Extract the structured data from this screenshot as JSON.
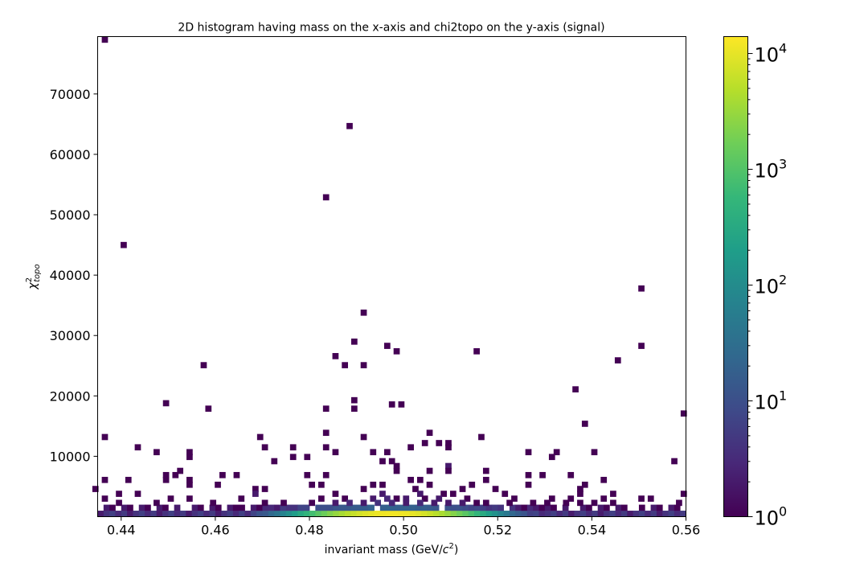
{
  "chart_data": {
    "type": "heatmap",
    "title": "2D histogram having mass on the x-axis and chi2topo on the y-axis (signal)",
    "xlabel": "invariant mass (GeV/c²)",
    "xlabel_prefix": "invariant mass (GeV/",
    "xlabel_c": "c",
    "xlabel_sup": "2",
    "xlabel_suffix": ")",
    "ylabel_main": "χ",
    "ylabel_sup": "2",
    "ylabel_sub": "topo",
    "xlim": [
      0.435,
      0.56
    ],
    "ylim": [
      0,
      79500
    ],
    "xticks": [
      0.44,
      0.46,
      0.48,
      0.5,
      0.52,
      0.54,
      0.56
    ],
    "xtick_labels": [
      "0.44",
      "0.46",
      "0.48",
      "0.50",
      "0.52",
      "0.54",
      "0.56"
    ],
    "yticks": [
      10000,
      20000,
      30000,
      40000,
      50000,
      60000,
      70000
    ],
    "ytick_labels": [
      "10000",
      "20000",
      "30000",
      "40000",
      "50000",
      "60000",
      "70000"
    ],
    "colorbar": {
      "scale": "log",
      "colormap": "viridis",
      "range": [
        1,
        14000
      ],
      "ticks": [
        {
          "base": "10",
          "exp": "0",
          "value": 1
        },
        {
          "base": "10",
          "exp": "1",
          "value": 10
        },
        {
          "base": "10",
          "exp": "2",
          "value": 100
        },
        {
          "base": "10",
          "exp": "3",
          "value": 1000
        },
        {
          "base": "10",
          "exp": "4",
          "value": 10000
        }
      ]
    },
    "bins": {
      "x_bins": 100,
      "y_bins": 80,
      "x_edges": [
        0.435,
        0.56
      ],
      "y_edges": [
        0,
        79500
      ]
    },
    "cells": [
      [
        0.4365,
        79000,
        1
      ],
      [
        0.4405,
        45000,
        1
      ],
      [
        0.4885,
        64700,
        1
      ],
      [
        0.4835,
        52900,
        1
      ],
      [
        0.5505,
        37800,
        1
      ],
      [
        0.4915,
        33800,
        1
      ],
      [
        0.4895,
        29000,
        1
      ],
      [
        0.4965,
        28300,
        1
      ],
      [
        0.4985,
        27400,
        1
      ],
      [
        0.5155,
        27400,
        1
      ],
      [
        0.5505,
        28300,
        1
      ],
      [
        0.4855,
        26600,
        1
      ],
      [
        0.4875,
        25100,
        1
      ],
      [
        0.4915,
        25100,
        1
      ],
      [
        0.4575,
        25100,
        1
      ],
      [
        0.5455,
        25900,
        1
      ],
      [
        0.5365,
        21100,
        1
      ],
      [
        0.4495,
        18800,
        1
      ],
      [
        0.4585,
        17900,
        1
      ],
      [
        0.4835,
        17900,
        1
      ],
      [
        0.4895,
        19300,
        1
      ],
      [
        0.4895,
        17900,
        1
      ],
      [
        0.4975,
        18600,
        1
      ],
      [
        0.4995,
        18600,
        1
      ],
      [
        0.5595,
        17100,
        1
      ],
      [
        0.5385,
        15400,
        1
      ],
      [
        0.4365,
        13200,
        1
      ],
      [
        0.4695,
        13200,
        1
      ],
      [
        0.4835,
        13900,
        1
      ],
      [
        0.4915,
        13200,
        1
      ],
      [
        0.5055,
        13900,
        1
      ],
      [
        0.5165,
        13200,
        1
      ],
      [
        0.4435,
        11500,
        1
      ],
      [
        0.4705,
        11500,
        1
      ],
      [
        0.4765,
        11500,
        1
      ],
      [
        0.4835,
        11500,
        1
      ],
      [
        0.5015,
        11500,
        1
      ],
      [
        0.5045,
        12200,
        1
      ],
      [
        0.5075,
        12200,
        1
      ],
      [
        0.5095,
        12200,
        1
      ],
      [
        0.5095,
        11500,
        1
      ],
      [
        0.4475,
        10700,
        1
      ],
      [
        0.4545,
        10700,
        1
      ],
      [
        0.4545,
        9900,
        1
      ],
      [
        0.4855,
        10700,
        1
      ],
      [
        0.4935,
        10700,
        1
      ],
      [
        0.4965,
        10700,
        1
      ],
      [
        0.5265,
        10700,
        1
      ],
      [
        0.5325,
        10700,
        1
      ],
      [
        0.5405,
        10700,
        1
      ],
      [
        0.4725,
        9200,
        1
      ],
      [
        0.4765,
        9900,
        1
      ],
      [
        0.4795,
        9900,
        1
      ],
      [
        0.4955,
        9200,
        1
      ],
      [
        0.4975,
        9200,
        1
      ],
      [
        0.5315,
        9900,
        1
      ],
      [
        0.5575,
        9200,
        1
      ],
      [
        0.4515,
        6900,
        1
      ],
      [
        0.4495,
        6900,
        1
      ],
      [
        0.4615,
        6900,
        1
      ],
      [
        0.4645,
        6900,
        1
      ],
      [
        0.4795,
        6900,
        1
      ],
      [
        0.4835,
        6900,
        1
      ],
      [
        0.4985,
        7600,
        1
      ],
      [
        0.4985,
        8400,
        1
      ],
      [
        0.5095,
        8400,
        2
      ],
      [
        0.5055,
        7600,
        1
      ],
      [
        0.5095,
        7600,
        1
      ],
      [
        0.5175,
        7600,
        1
      ],
      [
        0.5265,
        6900,
        1
      ],
      [
        0.5295,
        6900,
        1
      ],
      [
        0.5355,
        6900,
        1
      ],
      [
        0.4525,
        7600,
        1
      ],
      [
        0.4415,
        6100,
        1
      ],
      [
        0.4365,
        6100,
        1
      ],
      [
        0.4495,
        6100,
        1
      ],
      [
        0.4545,
        6100,
        1
      ],
      [
        0.4545,
        5300,
        1
      ],
      [
        0.4605,
        5300,
        1
      ],
      [
        0.4805,
        5300,
        1
      ],
      [
        0.4825,
        5300,
        1
      ],
      [
        0.4935,
        5300,
        1
      ],
      [
        0.4955,
        5300,
        1
      ],
      [
        0.5015,
        6100,
        1
      ],
      [
        0.5035,
        6100,
        1
      ],
      [
        0.5055,
        5300,
        1
      ],
      [
        0.5145,
        5300,
        1
      ],
      [
        0.5175,
        6100,
        1
      ],
      [
        0.5195,
        4600,
        1
      ],
      [
        0.5265,
        5300,
        1
      ],
      [
        0.5385,
        5300,
        1
      ],
      [
        0.5425,
        6100,
        1
      ],
      [
        0.4345,
        4600,
        1
      ],
      [
        0.4395,
        3800,
        1
      ],
      [
        0.4435,
        3800,
        1
      ],
      [
        0.4685,
        4600,
        1
      ],
      [
        0.4705,
        4600,
        1
      ],
      [
        0.4855,
        3800,
        1
      ],
      [
        0.4915,
        4600,
        1
      ],
      [
        0.5125,
        4600,
        1
      ],
      [
        0.5375,
        4600,
        1
      ],
      [
        0.5445,
        3800,
        1
      ],
      [
        0.4685,
        3800,
        2
      ],
      [
        0.4955,
        3800,
        2
      ],
      [
        0.5025,
        4600,
        1
      ],
      [
        0.5035,
        3800,
        2
      ],
      [
        0.5085,
        3800,
        1
      ],
      [
        0.5105,
        3800,
        1
      ],
      [
        0.5215,
        3800,
        1
      ],
      [
        0.5375,
        3800,
        1
      ],
      [
        0.5595,
        3800,
        1
      ],
      [
        0.4365,
        3000,
        1
      ],
      [
        0.4395,
        2300,
        1
      ],
      [
        0.4475,
        2300,
        1
      ],
      [
        0.4505,
        3000,
        1
      ],
      [
        0.4545,
        3000,
        1
      ],
      [
        0.4595,
        2300,
        1
      ],
      [
        0.4655,
        3000,
        1
      ],
      [
        0.4705,
        2300,
        1
      ],
      [
        0.4745,
        2300,
        1
      ],
      [
        0.4805,
        2300,
        1
      ],
      [
        0.4825,
        3000,
        1
      ],
      [
        0.4855,
        2300,
        2
      ],
      [
        0.4875,
        3000,
        1
      ],
      [
        0.4935,
        3000,
        2
      ],
      [
        0.4965,
        3000,
        3
      ],
      [
        0.4985,
        3000,
        1
      ],
      [
        0.5005,
        3000,
        2
      ],
      [
        0.5045,
        3000,
        1
      ],
      [
        0.5075,
        3000,
        2
      ],
      [
        0.5135,
        3000,
        1
      ],
      [
        0.5175,
        2300,
        1
      ],
      [
        0.5235,
        3000,
        1
      ],
      [
        0.5275,
        2300,
        1
      ],
      [
        0.5315,
        3000,
        1
      ],
      [
        0.5355,
        3000,
        1
      ],
      [
        0.5375,
        2300,
        1
      ],
      [
        0.5425,
        3000,
        1
      ],
      [
        0.5505,
        3000,
        1
      ],
      [
        0.5525,
        3000,
        1
      ],
      [
        0.5585,
        2300,
        1
      ],
      [
        0.4885,
        2300,
        3
      ],
      [
        0.4915,
        2300,
        2
      ],
      [
        0.4945,
        2300,
        4
      ],
      [
        0.4975,
        2300,
        3
      ],
      [
        0.5005,
        2300,
        2
      ],
      [
        0.5035,
        2300,
        3
      ],
      [
        0.5065,
        2300,
        2
      ],
      [
        0.5095,
        2300,
        2
      ],
      [
        0.5125,
        2300,
        2
      ],
      [
        0.5155,
        2300,
        1
      ],
      [
        0.5225,
        2300,
        1
      ],
      [
        0.5305,
        2300,
        1
      ],
      [
        0.5345,
        2300,
        1
      ],
      [
        0.5405,
        2300,
        1
      ],
      [
        0.5445,
        2300,
        1
      ]
    ]
  }
}
